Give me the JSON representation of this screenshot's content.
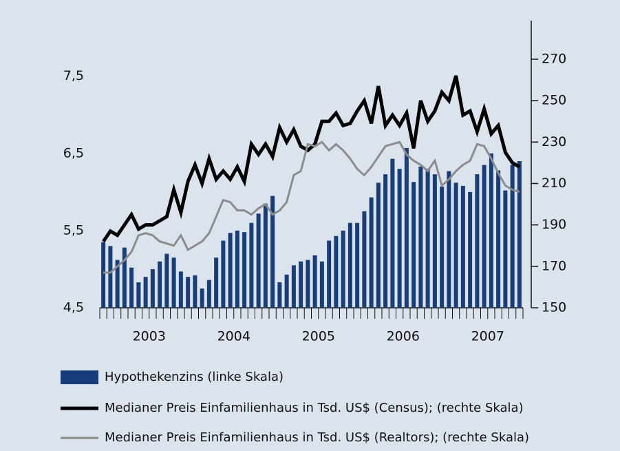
{
  "chart_data": {
    "type": "bar-line",
    "categories": [
      null,
      null,
      null,
      null,
      null,
      null,
      "2003",
      null,
      null,
      null,
      null,
      null,
      null,
      null,
      null,
      null,
      null,
      null,
      "2004",
      null,
      null,
      null,
      null,
      null,
      null,
      null,
      null,
      null,
      null,
      null,
      "2005",
      null,
      null,
      null,
      null,
      null,
      null,
      null,
      null,
      null,
      null,
      null,
      "2006",
      null,
      null,
      null,
      null,
      null,
      null,
      null,
      null,
      null,
      null,
      null,
      "2007",
      null,
      null,
      null,
      null,
      null
    ],
    "ylim": [
      4.5,
      8.22
    ],
    "yticks": [
      {
        "value": 4.5,
        "label": "4,5"
      },
      {
        "value": 5.5,
        "label": "5,5"
      },
      {
        "value": 6.5,
        "label": "6,5"
      },
      {
        "value": 7.5,
        "label": "7,5"
      }
    ],
    "y2lim": [
      150,
      288.6
    ],
    "y2ticks": [
      150,
      170,
      190,
      210,
      230,
      250,
      270
    ],
    "series": [
      {
        "name": "Hypothekenzins (linke Skala)",
        "kind": "bar",
        "color": "#173e7a",
        "values": [
          5.35,
          5.3,
          5.12,
          5.28,
          5.02,
          4.83,
          4.9,
          5.0,
          5.1,
          5.2,
          5.15,
          4.97,
          4.9,
          4.92,
          4.75,
          4.86,
          5.15,
          5.37,
          5.47,
          5.5,
          5.48,
          5.6,
          5.72,
          5.85,
          5.95,
          4.83,
          4.93,
          5.05,
          5.1,
          5.12,
          5.18,
          5.1,
          5.37,
          5.43,
          5.5,
          5.6,
          5.6,
          5.75,
          5.93,
          6.12,
          6.23,
          6.43,
          6.3,
          6.57,
          6.13,
          6.33,
          6.3,
          6.23,
          6.07,
          6.27,
          6.12,
          6.08,
          6.0,
          6.23,
          6.35,
          6.5,
          6.28,
          6.02,
          6.35,
          6.4
        ]
      },
      {
        "name": "Medianer Preis Einfamilienhaus in Tsd. US$ (Census); (rechte Skala)",
        "kind": "line",
        "axis": "y2",
        "color": "#000000",
        "values": [
          182,
          187,
          185,
          190,
          195,
          188,
          190,
          190,
          192,
          194,
          207,
          196,
          211,
          219,
          210,
          222,
          212,
          216,
          212,
          218,
          211,
          229,
          224,
          229,
          223,
          237,
          230,
          236,
          228,
          226,
          229,
          240,
          240,
          244,
          238,
          239,
          245,
          250,
          239,
          257,
          238,
          243,
          238,
          244,
          227,
          250,
          240,
          245,
          254,
          250,
          262,
          243,
          245,
          235,
          246,
          234,
          238,
          225,
          220,
          218
        ]
      },
      {
        "name": "Medianer Preis Einfamilienhaus in Tsd. US$ (Realtors); (rechte Skala)",
        "kind": "line",
        "axis": "y2",
        "color": "#8c8c8c",
        "values": [
          167,
          167,
          170,
          173,
          177,
          185,
          186,
          185,
          182,
          181,
          180,
          185,
          178,
          180,
          182,
          186,
          194,
          202,
          201,
          197,
          197,
          195,
          198,
          200,
          195,
          197,
          201,
          214,
          216,
          229,
          228,
          230,
          226,
          229,
          226,
          222,
          217,
          214,
          218,
          223,
          228,
          229,
          230,
          224,
          221,
          219,
          216,
          221,
          209,
          212,
          216,
          219,
          221,
          229,
          228,
          222,
          215,
          209,
          207,
          206
        ]
      }
    ]
  }
}
